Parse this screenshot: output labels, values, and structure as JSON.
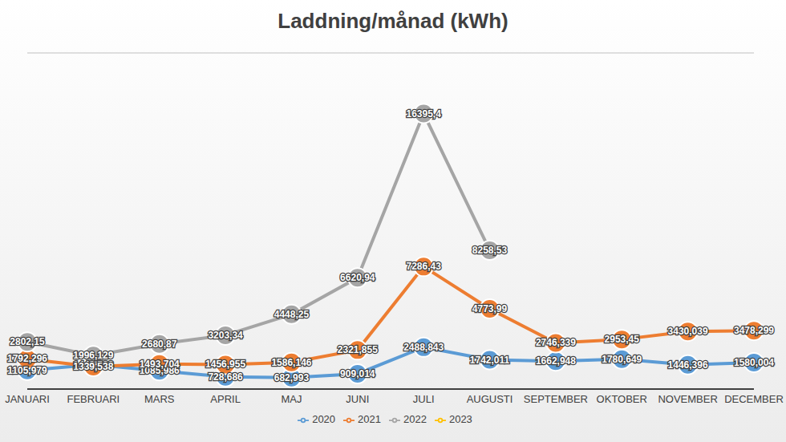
{
  "chart_data": {
    "type": "line",
    "title": "Laddning/månad (kWh)",
    "categories": [
      "JANUARI",
      "FEBRUARI",
      "MARS",
      "APRIL",
      "MAJ",
      "JUNI",
      "JULI",
      "AUGUSTI",
      "SEPTEMBER",
      "OKTOBER",
      "NOVEMBER",
      "DECEMBER"
    ],
    "series": [
      {
        "name": "2020",
        "color": "#5b9bd5",
        "marker": "circle",
        "values": [
          1105.979,
          1449.588,
          1085.986,
          728.686,
          682.993,
          909.014,
          2488.843,
          1742.011,
          1662.948,
          1780.649,
          1446.396,
          1580.004
        ],
        "value_labels": [
          "1105,979",
          "1449,588",
          "1085,986",
          "728,686",
          "682,993",
          "909,014",
          "2488,843",
          "1742,011",
          "1662,948",
          "1780,649",
          "1446,396",
          "1580,004"
        ]
      },
      {
        "name": "2021",
        "color": "#ed7d31",
        "marker": "circle",
        "values": [
          1792.296,
          1339.538,
          1493.704,
          1456.955,
          1586.146,
          2321.855,
          7286.43,
          4773.99,
          2746.339,
          2953.45,
          3430.039,
          3478.299
        ],
        "value_labels": [
          "1792,296",
          "1339,538",
          "1493,704",
          "1456,955",
          "1586,146",
          "2321,855",
          "7286,43",
          "4773,99",
          "2746,339",
          "2953,45",
          "3430,039",
          "3478,299"
        ]
      },
      {
        "name": "2022",
        "color": "#a5a5a5",
        "marker": "circle",
        "values": [
          2802.15,
          1996.129,
          2680.87,
          3203.34,
          4448.25,
          6620.94,
          16395.4,
          8258.53,
          null,
          null,
          null,
          null
        ],
        "value_labels": [
          "2802,15",
          "1996,129",
          "2680,87",
          "3203,34",
          "4448,25",
          "6620,94",
          "16395,4",
          "8258,53",
          null,
          null,
          null,
          null
        ]
      },
      {
        "name": "2023",
        "color": "#ffc000",
        "marker": "circle",
        "values": [
          null,
          null,
          null,
          null,
          null,
          null,
          null,
          null,
          null,
          null,
          null,
          null
        ],
        "value_labels": [
          null,
          null,
          null,
          null,
          null,
          null,
          null,
          null,
          null,
          null,
          null,
          null
        ]
      }
    ],
    "ylim": [
      0,
      20000
    ],
    "yticks": [
      0,
      2000,
      4000,
      6000,
      8000,
      10000,
      12000,
      14000,
      16000,
      18000,
      20000
    ],
    "grid": true,
    "legend": "bottom",
    "data_labels": true,
    "tick_labels": "x"
  }
}
